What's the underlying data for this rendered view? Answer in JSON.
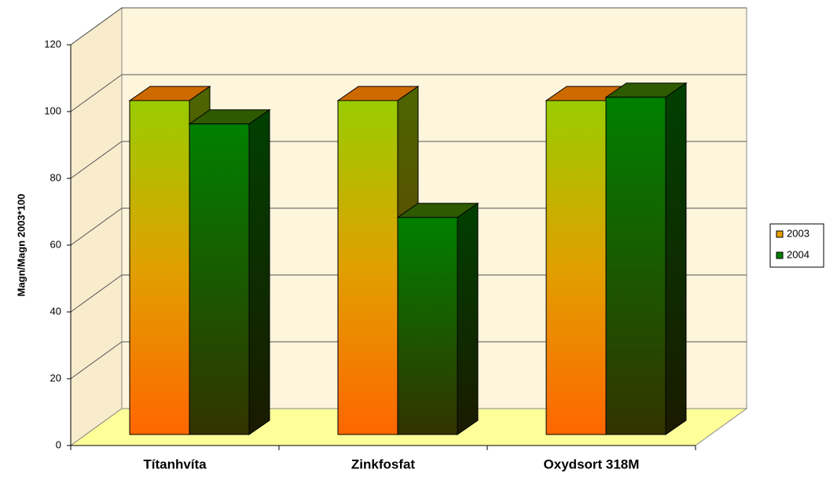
{
  "chart_data": {
    "type": "bar3d",
    "y_axis_label": "Magn/Magn 2003*100",
    "categories": [
      "Títanhvíta",
      "Zinkfosfat",
      "Oxydsort 318M"
    ],
    "series": [
      {
        "name": "2003",
        "color": "#e6a000",
        "values": [
          100,
          100,
          100
        ]
      },
      {
        "name": "2004",
        "color": "#008000",
        "values": [
          93,
          65,
          101
        ]
      }
    ],
    "ylim": [
      0,
      120
    ],
    "yticks": [
      0,
      20,
      40,
      60,
      80,
      100,
      120
    ],
    "grid": true,
    "legend": "right"
  }
}
